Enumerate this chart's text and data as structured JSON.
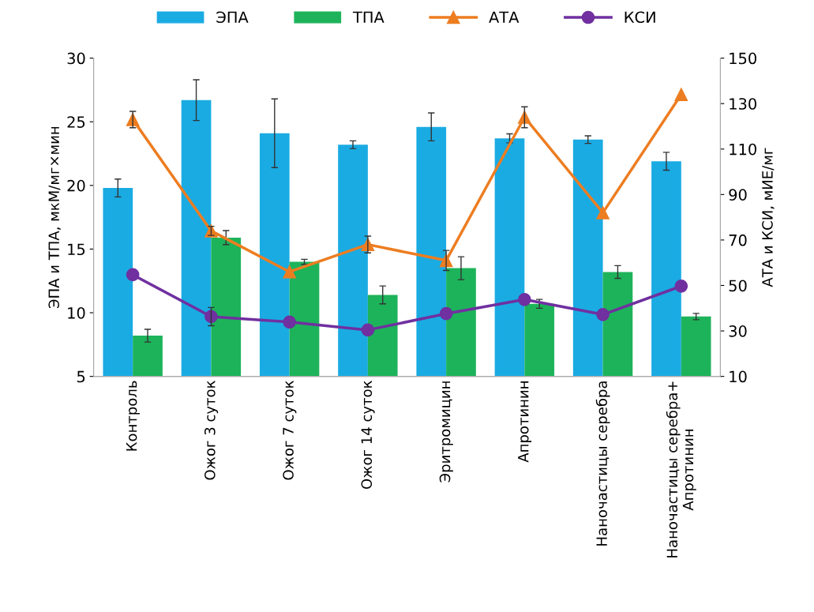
{
  "chart_data": {
    "type": "bar",
    "ylabel": "ЭПА и ТПА, мкМ/мг×мин",
    "y2label": "АТА и КСИ, мИЕ/мг",
    "categories": [
      "Контроль",
      "Ожог 3 суток",
      "Ожог 7 суток",
      "Ожог 14 суток",
      "Эритромицин",
      "Апротинин",
      "Наночастицы серебра",
      "Наночастицы серебра+\nАпротинин"
    ],
    "series": [
      {
        "name": "ЭПА",
        "color": "#1aabe3",
        "values": [
          19.8,
          26.7,
          24.1,
          23.2,
          24.6,
          23.7,
          23.6,
          21.9
        ],
        "errors": [
          0.7,
          1.6,
          2.7,
          0.3,
          1.1,
          0.35,
          0.3,
          0.7
        ]
      },
      {
        "name": "ТПА",
        "color": "#1db35a",
        "values": [
          8.2,
          15.9,
          14.0,
          11.4,
          13.5,
          10.7,
          13.2,
          9.7
        ],
        "errors": [
          0.5,
          0.55,
          0.2,
          0.7,
          0.9,
          0.35,
          0.5,
          0.25
        ]
      },
      {
        "name": "АТА",
        "type": "line",
        "axis": "y2",
        "marker": "triangle",
        "color": "#ed7d21",
        "values": [
          123,
          74,
          56,
          68,
          61,
          124,
          82,
          134
        ],
        "errors": [
          3.6,
          2,
          null,
          3.7,
          4.4,
          4.6,
          null,
          null
        ]
      },
      {
        "name": "КСИ",
        "type": "line",
        "axis": "y2",
        "marker": "circle",
        "color": "#7030a0",
        "values": [
          54.7,
          36.3,
          33.9,
          30.4,
          37.6,
          43.8,
          37.2,
          49.7
        ],
        "errors": [
          null,
          4,
          null,
          null,
          null,
          null,
          null,
          null
        ]
      }
    ],
    "ylim": [
      5,
      30
    ],
    "yticks": [
      5,
      10,
      15,
      20,
      25,
      30
    ],
    "y2lim": [
      10,
      150
    ],
    "y2ticks": [
      10,
      30,
      50,
      70,
      90,
      110,
      130,
      150
    ],
    "grid": false,
    "legend": "top"
  }
}
